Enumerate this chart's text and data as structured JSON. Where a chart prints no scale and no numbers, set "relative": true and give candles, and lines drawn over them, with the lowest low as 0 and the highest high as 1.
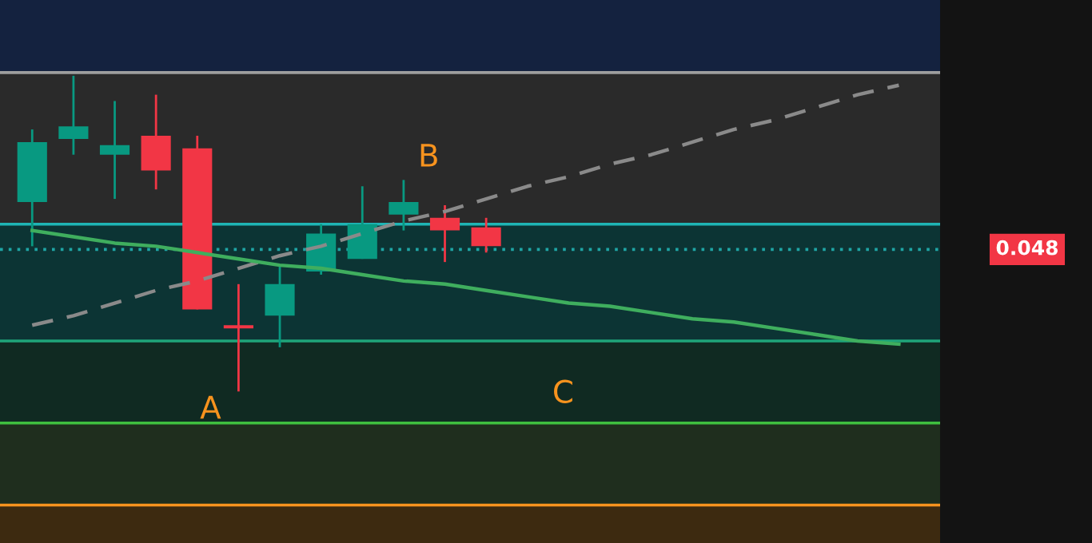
{
  "chart_data": {
    "type": "candlestick",
    "relative": true,
    "categories": [
      null,
      null,
      null,
      null,
      null,
      null,
      null,
      null,
      null,
      null,
      null,
      null,
      null,
      null,
      null,
      null,
      null,
      null,
      null,
      null,
      null,
      null
    ],
    "ohlc": [
      [
        0.6,
        0.83,
        0.46,
        0.79
      ],
      [
        0.8,
        1.0,
        0.75,
        0.84
      ],
      [
        0.75,
        0.92,
        0.61,
        0.78
      ],
      [
        0.81,
        0.94,
        0.64,
        0.7
      ],
      [
        0.77,
        0.81,
        0.26,
        0.26
      ],
      [
        0.21,
        0.34,
        0.0,
        0.2
      ],
      [
        0.24,
        0.4,
        0.14,
        0.34
      ],
      [
        0.38,
        0.53,
        0.37,
        0.5
      ],
      [
        0.42,
        0.65,
        0.42,
        0.53
      ],
      [
        0.56,
        0.67,
        0.51,
        0.6
      ],
      [
        0.55,
        0.59,
        0.41,
        0.51
      ],
      [
        0.52,
        0.55,
        0.44,
        0.46
      ],
      null,
      null,
      null,
      null,
      null,
      null,
      null,
      null,
      null,
      null
    ],
    "colors": [
      "#089981",
      "#089981",
      "#089981",
      "#f23645",
      "#f23645",
      "#f23645",
      "#089981",
      "#089981",
      "#089981",
      "#089981",
      "#f23645",
      "#f23645",
      null,
      null,
      null,
      null,
      null,
      null,
      null,
      null,
      null,
      null
    ],
    "series": [
      {
        "type": "line",
        "values": [
          0.21,
          0.24,
          0.28,
          0.32,
          0.35,
          0.39,
          0.43,
          0.46,
          0.5,
          0.54,
          0.57,
          0.61,
          0.65,
          0.68,
          0.72,
          0.75,
          0.79,
          0.83,
          0.86,
          0.9,
          0.94,
          0.97
        ],
        "color": "#8a8a8a",
        "line_style": "dashed"
      },
      {
        "type": "line",
        "values": [
          0.51,
          0.49,
          0.47,
          0.46,
          0.44,
          0.42,
          0.4,
          0.39,
          0.37,
          0.35,
          0.34,
          0.32,
          0.3,
          0.28,
          0.27,
          0.25,
          0.23,
          0.22,
          0.2,
          0.18,
          0.16,
          0.15
        ],
        "color": "#3fae5e",
        "line_style": "solid"
      }
    ],
    "bands": [
      {
        "axis": "y",
        "from": 1.01,
        "to": 1.24,
        "color": "#14223f"
      },
      {
        "axis": "y",
        "from": 0.53,
        "to": 1.01,
        "color": "#2a2a2a"
      },
      {
        "axis": "y",
        "from": 0.16,
        "to": 0.53,
        "color": "#0c3434"
      },
      {
        "axis": "y",
        "from": -0.1,
        "to": 0.16,
        "color": "#102a22"
      },
      {
        "axis": "y",
        "from": -0.36,
        "to": -0.1,
        "color": "#1f2e1e"
      },
      {
        "axis": "y",
        "from": -0.48,
        "to": -0.36,
        "color": "#3d2a10"
      }
    ],
    "ref_lines": [
      {
        "axis": "y",
        "value": 1.01,
        "color": "#9e9e9e",
        "line_style": "solid"
      },
      {
        "axis": "y",
        "value": 0.53,
        "color": "#1fb5b5",
        "line_style": "solid"
      },
      {
        "axis": "y",
        "value": 0.16,
        "color": "#1fa57a",
        "line_style": "solid"
      },
      {
        "axis": "y",
        "value": -0.1,
        "color": "#3fbf3f",
        "line_style": "solid"
      },
      {
        "axis": "y",
        "value": -0.36,
        "color": "#f7931e",
        "line_style": "solid"
      },
      {
        "axis": "y",
        "value": 0.45,
        "color": "#1fa5a5",
        "line_style": "dotted"
      }
    ],
    "annotations": [
      "A",
      "B",
      "C",
      "0.048"
    ]
  }
}
